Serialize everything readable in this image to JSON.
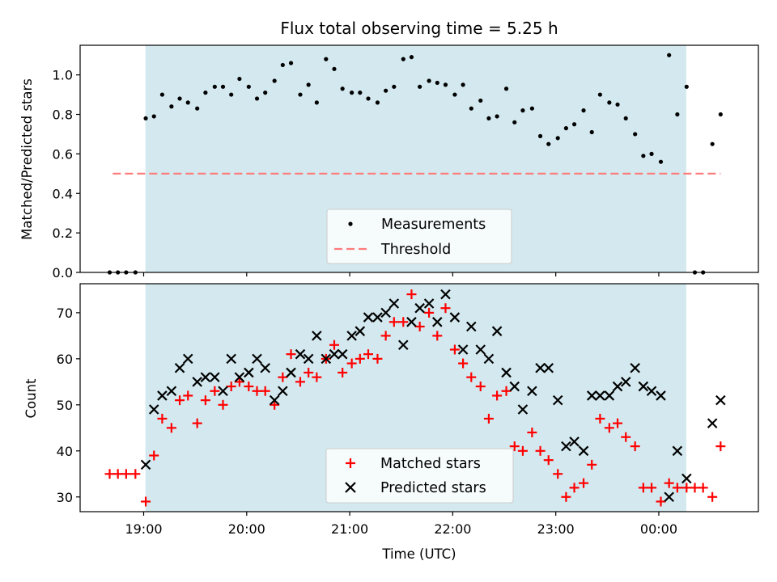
{
  "chart_data": [
    {
      "type": "scatter",
      "title": "Flux total observing time = 5.25 h",
      "xlabel": "",
      "ylabel": "Matched/Predicted stars",
      "x_unit": "hours since 19:00 UTC",
      "xlim": [
        -0.6167,
        5.9667
      ],
      "ylim": [
        0.0,
        1.15
      ],
      "yticks": [
        "0.0",
        "0.2",
        "0.4",
        "0.6",
        "0.8",
        "1.0"
      ],
      "ytick_values": [
        0.0,
        0.2,
        0.4,
        0.6,
        0.8,
        1.0
      ],
      "shaded_span": [
        0.0167,
        5.2667
      ],
      "shaded_color": "#d3e9ef",
      "series": [
        {
          "name": "Measurements",
          "marker": "dot",
          "color": "#000000",
          "x": [
            -0.33,
            -0.25,
            -0.17,
            -0.08,
            0.02,
            0.1,
            0.18,
            0.27,
            0.35,
            0.43,
            0.52,
            0.6,
            0.69,
            0.77,
            0.85,
            0.93,
            1.02,
            1.1,
            1.18,
            1.27,
            1.35,
            1.43,
            1.52,
            1.6,
            1.68,
            1.77,
            1.85,
            1.93,
            2.02,
            2.1,
            2.18,
            2.27,
            2.35,
            2.43,
            2.52,
            2.6,
            2.68,
            2.77,
            2.85,
            2.93,
            3.02,
            3.1,
            3.18,
            3.27,
            3.35,
            3.43,
            3.52,
            3.6,
            3.68,
            3.77,
            3.85,
            3.93,
            4.02,
            4.1,
            4.18,
            4.27,
            4.35,
            4.43,
            4.52,
            4.6,
            4.68,
            4.77,
            4.85,
            4.93,
            5.02,
            5.1,
            5.18,
            5.27,
            5.35,
            5.43,
            5.52,
            5.6
          ],
          "y": [
            0.0,
            0.0,
            0.0,
            0.0,
            0.78,
            0.79,
            0.9,
            0.84,
            0.88,
            0.86,
            0.83,
            0.91,
            0.94,
            0.94,
            0.9,
            0.98,
            0.94,
            0.88,
            0.91,
            0.97,
            1.05,
            1.06,
            0.9,
            0.95,
            0.86,
            1.08,
            1.03,
            0.93,
            0.91,
            0.91,
            0.88,
            0.86,
            0.92,
            0.94,
            1.08,
            1.09,
            0.94,
            0.97,
            0.96,
            0.95,
            0.9,
            0.95,
            0.83,
            0.87,
            0.78,
            0.79,
            0.93,
            0.76,
            0.82,
            0.83,
            0.69,
            0.65,
            0.68,
            0.73,
            0.75,
            0.82,
            0.71,
            0.9,
            0.86,
            0.85,
            0.78,
            0.7,
            0.59,
            0.6,
            0.56,
            1.1,
            0.8,
            0.94,
            0.0,
            0.0,
            0.65,
            0.8
          ]
        },
        {
          "name": "Threshold",
          "marker": "dashed-line",
          "color": "#ff7b7b",
          "x": [
            -0.3,
            5.6
          ],
          "y": [
            0.5,
            0.5
          ]
        }
      ],
      "legend": [
        "Measurements",
        "Threshold"
      ],
      "legend_position": "lower-center"
    },
    {
      "type": "scatter",
      "title": "",
      "xlabel": "Time (UTC)",
      "ylabel": "Count",
      "x_unit": "hours since 19:00 UTC",
      "xlim": [
        -0.6167,
        5.9667
      ],
      "ylim": [
        26.8,
        76.3
      ],
      "xticks": [
        "19:00",
        "20:00",
        "21:00",
        "22:00",
        "23:00",
        "00:00"
      ],
      "xtick_values": [
        0,
        1,
        2,
        3,
        4,
        5
      ],
      "yticks": [
        "30",
        "40",
        "50",
        "60",
        "70"
      ],
      "ytick_values": [
        30,
        40,
        50,
        60,
        70
      ],
      "shaded_span": [
        0.0167,
        5.2667
      ],
      "shaded_color": "#d3e9ef",
      "series": [
        {
          "name": "Matched stars",
          "marker": "plus",
          "color": "#ff0000",
          "x": [
            -0.33,
            -0.25,
            -0.17,
            -0.08,
            0.02,
            0.1,
            0.18,
            0.27,
            0.35,
            0.43,
            0.52,
            0.6,
            0.69,
            0.77,
            0.85,
            0.93,
            1.02,
            1.1,
            1.18,
            1.27,
            1.35,
            1.43,
            1.52,
            1.6,
            1.68,
            1.77,
            1.85,
            1.93,
            2.02,
            2.1,
            2.18,
            2.27,
            2.35,
            2.43,
            2.52,
            2.6,
            2.68,
            2.77,
            2.85,
            2.93,
            3.02,
            3.1,
            3.18,
            3.27,
            3.35,
            3.43,
            3.52,
            3.6,
            3.68,
            3.77,
            3.85,
            3.93,
            4.02,
            4.1,
            4.18,
            4.27,
            4.35,
            4.43,
            4.52,
            4.6,
            4.68,
            4.77,
            4.85,
            4.93,
            5.02,
            5.1,
            5.18,
            5.27,
            5.35,
            5.43,
            5.52,
            5.6
          ],
          "y": [
            35,
            35,
            35,
            35,
            29,
            39,
            47,
            45,
            51,
            52,
            46,
            51,
            53,
            50,
            54,
            55,
            54,
            53,
            53,
            50,
            56,
            61,
            55,
            57,
            56,
            60,
            63,
            57,
            59,
            60,
            61,
            60,
            65,
            68,
            68,
            74,
            67,
            70,
            65,
            71,
            62,
            59,
            56,
            54,
            47,
            52,
            53,
            41,
            40,
            44,
            40,
            38,
            35,
            30,
            32,
            33,
            37,
            47,
            45,
            46,
            43,
            41,
            32,
            32,
            29,
            33,
            32,
            32,
            32,
            32,
            30,
            41
          ]
        },
        {
          "name": "Predicted stars",
          "marker": "x",
          "color": "#000000",
          "x": [
            0.02,
            0.1,
            0.18,
            0.27,
            0.35,
            0.43,
            0.52,
            0.6,
            0.69,
            0.77,
            0.85,
            0.93,
            1.02,
            1.1,
            1.18,
            1.27,
            1.35,
            1.43,
            1.52,
            1.6,
            1.68,
            1.77,
            1.85,
            1.93,
            2.02,
            2.1,
            2.18,
            2.27,
            2.35,
            2.43,
            2.52,
            2.6,
            2.68,
            2.77,
            2.85,
            2.93,
            3.02,
            3.1,
            3.18,
            3.27,
            3.35,
            3.43,
            3.52,
            3.6,
            3.68,
            3.77,
            3.85,
            3.93,
            4.02,
            4.1,
            4.18,
            4.27,
            4.35,
            4.43,
            4.52,
            4.6,
            4.68,
            4.77,
            4.85,
            4.93,
            5.02,
            5.1,
            5.18,
            5.27,
            5.52,
            5.6
          ],
          "y": [
            37,
            49,
            52,
            53,
            58,
            60,
            55,
            56,
            56,
            53,
            60,
            56,
            57,
            60,
            58,
            51,
            53,
            57,
            61,
            60,
            65,
            60,
            61,
            61,
            65,
            66,
            69,
            69,
            70,
            72,
            63,
            68,
            71,
            72,
            68,
            74,
            69,
            62,
            67,
            62,
            60,
            66,
            57,
            54,
            49,
            53,
            58,
            58,
            51,
            41,
            42,
            40,
            52,
            52,
            52,
            54,
            55,
            58,
            54,
            53,
            52,
            30,
            40,
            34,
            46,
            51
          ]
        }
      ],
      "legend": [
        "Matched stars",
        "Predicted stars"
      ],
      "legend_position": "lower-center"
    }
  ]
}
